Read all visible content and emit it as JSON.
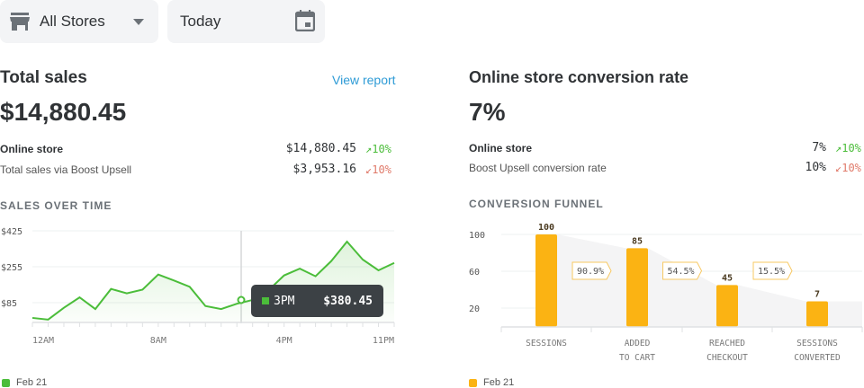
{
  "filters": {
    "store": "All Stores",
    "date": "Today"
  },
  "total_sales": {
    "title": "Total sales",
    "link": "View report",
    "value": "$14,880.45",
    "rows": [
      {
        "label": "Online store",
        "value": "$14,880.45",
        "change": "10%",
        "trend": "up"
      },
      {
        "label": "Total sales via Boost Upsell",
        "value": "$3,953.16",
        "change": "10%",
        "trend": "down"
      }
    ],
    "chart_title": "SALES OVER TIME",
    "legend": "Feb 21"
  },
  "conversion": {
    "title": "Online store conversion rate",
    "value": "7%",
    "rows": [
      {
        "label": "Online store",
        "value": "7%",
        "change": "10%",
        "trend": "up"
      },
      {
        "label": "Boost Upsell conversion rate",
        "value": "10%",
        "change": "10%",
        "trend": "down"
      }
    ],
    "chart_title": "CONVERSION FUNNEL",
    "legend": "Feb 21"
  },
  "chart_data": [
    {
      "type": "line",
      "series": [
        {
          "values": [
            13,
            5,
            61,
            110,
            55,
            150,
            129,
            147,
            218,
            190,
            160,
            69,
            55,
            80,
            98,
            143,
            214,
            246,
            210,
            282,
            374,
            289,
            238,
            273,
            292
          ]
        }
      ],
      "x_tick_labels": [
        "12AM",
        "8AM",
        "4PM",
        "11PM"
      ],
      "y_tick_labels": [
        "$425",
        "$255",
        "$85"
      ],
      "tooltip": {
        "label": "3PM",
        "value": "$380.45"
      },
      "color": "#4bbd3a",
      "grid": true
    },
    {
      "type": "bar",
      "categories": [
        [
          "SESSIONS"
        ],
        [
          "ADDED",
          "TO CART"
        ],
        [
          "REACHED",
          "CHECKOUT"
        ],
        [
          "SESSIONS",
          "CONVERTED"
        ]
      ],
      "values": [
        100,
        85,
        45,
        7
      ],
      "conversion_rates": [
        "90.9%",
        "54.5%",
        "15.5%"
      ],
      "y_tick_labels": [
        "100",
        "60",
        "20"
      ],
      "color": "#fbb313",
      "grid": true
    }
  ]
}
